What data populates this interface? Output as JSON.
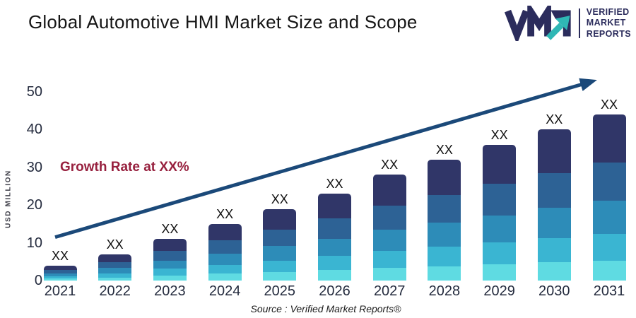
{
  "header": {
    "title": "Global Automotive HMI Market Size and Scope",
    "logo": {
      "mark_letters": "VMR",
      "line1": "VERIFIED",
      "line2": "MARKET",
      "line3": "REPORTS",
      "navy": "#2b2c5c",
      "teal": "#2fb7b5"
    }
  },
  "annotations": {
    "growth_text": "Growth Rate at XX%",
    "growth_color": "#97203e",
    "source_text": "Source :  Verified Market Reports®"
  },
  "chart_data": {
    "type": "bar",
    "stacked": true,
    "title": "Global Automotive HMI Market Size and Scope",
    "xlabel": "",
    "ylabel": "USD MILLION",
    "ylim": [
      0,
      50
    ],
    "yticks": [
      0,
      10,
      20,
      30,
      40,
      50
    ],
    "grid": false,
    "legend": "none",
    "categories": [
      "2021",
      "2022",
      "2023",
      "2024",
      "2025",
      "2026",
      "2027",
      "2028",
      "2029",
      "2030",
      "2031"
    ],
    "totals": [
      4,
      7,
      11,
      15,
      19,
      23,
      28,
      32,
      36,
      40,
      44
    ],
    "bar_top_label": "XX",
    "series": [
      {
        "name": "segment-cyan-bottom",
        "color": "#5fdbe2",
        "values": [
          0.5,
          0.8,
          1.3,
          1.8,
          2.3,
          2.8,
          3.4,
          3.8,
          4.3,
          4.8,
          5.3
        ]
      },
      {
        "name": "segment-teal",
        "color": "#3ab5d2",
        "values": [
          0.6,
          1.1,
          1.8,
          2.4,
          3.0,
          3.7,
          4.5,
          5.1,
          5.8,
          6.4,
          7.0
        ]
      },
      {
        "name": "segment-medium-blue",
        "color": "#2d8cb8",
        "values": [
          0.8,
          1.4,
          2.2,
          3.0,
          3.8,
          4.6,
          5.6,
          6.4,
          7.2,
          8.0,
          8.8
        ]
      },
      {
        "name": "segment-steel-blue",
        "color": "#2d6295",
        "values": [
          0.9,
          1.6,
          2.5,
          3.5,
          4.4,
          5.3,
          6.4,
          7.4,
          8.3,
          9.2,
          10.1
        ]
      },
      {
        "name": "segment-navy-top",
        "color": "#303668",
        "values": [
          1.2,
          2.1,
          3.2,
          4.3,
          5.5,
          6.6,
          8.1,
          9.3,
          10.4,
          11.6,
          12.8
        ]
      }
    ],
    "trend_arrow": {
      "color": "#1b4979",
      "start_value": 11.5,
      "end_value": 53
    }
  }
}
